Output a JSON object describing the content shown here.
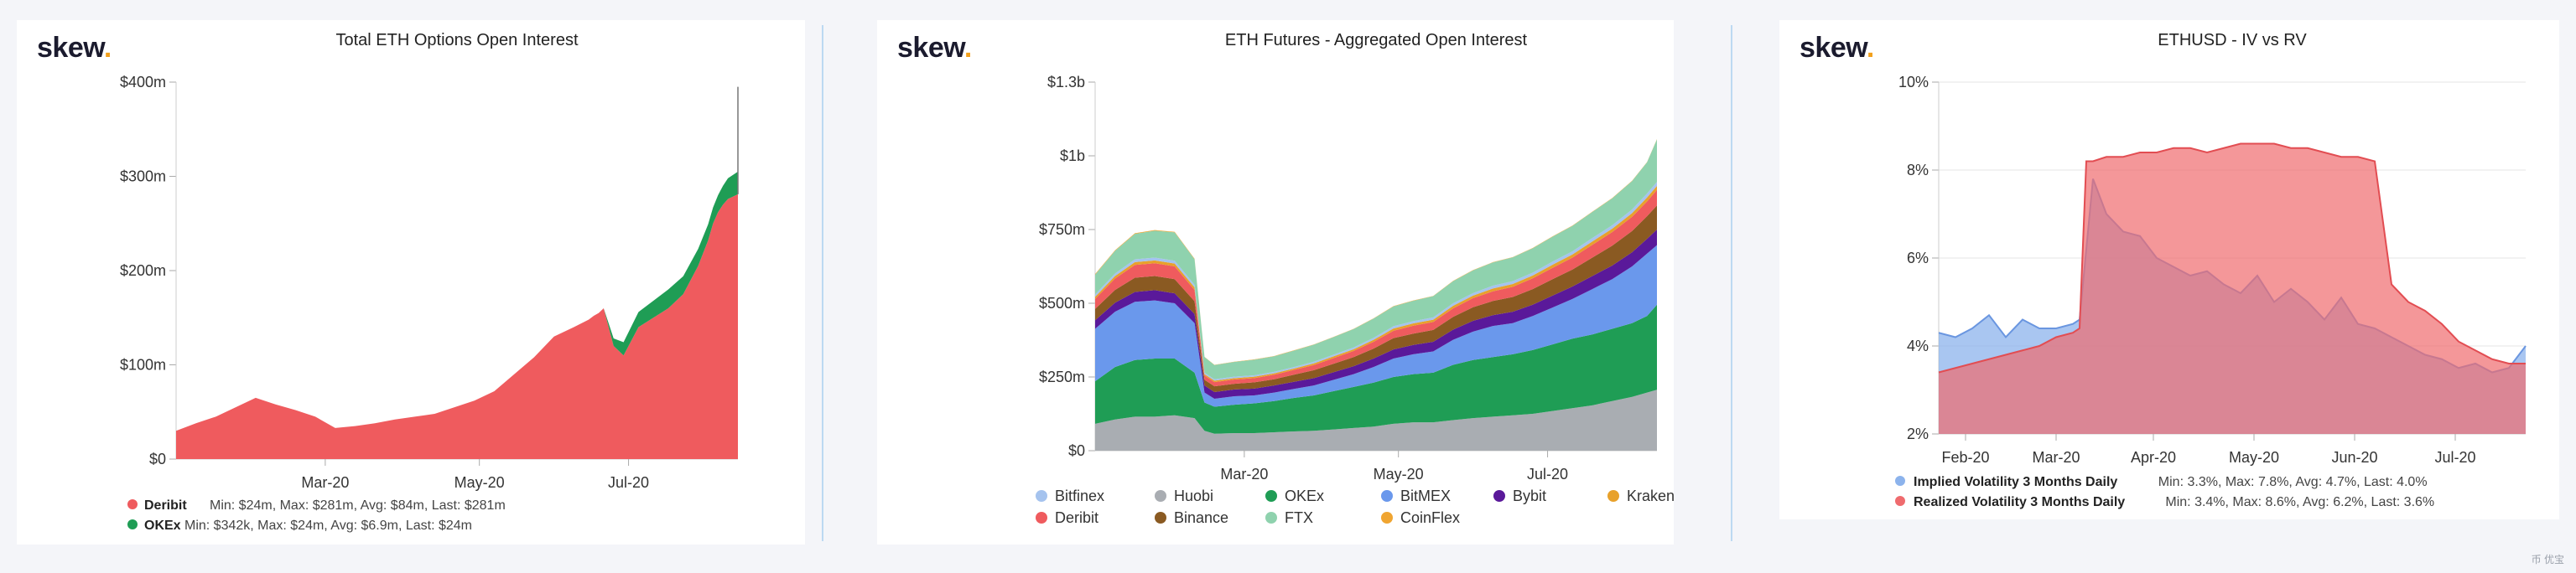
{
  "brand": {
    "name": "skew",
    "dot": "."
  },
  "footer_mark": "币 优宝",
  "colors": {
    "deribit": "#ef5b5e",
    "okex": "#1f9d55",
    "bitfinex": "#a5c3ee",
    "huobi": "#a9adb2",
    "bitmex": "#6a98ec",
    "bybit": "#5a199a",
    "kraken": "#e8a12b",
    "binance": "#8a5a22",
    "ftx": "#8fd2ae",
    "coinflex": "#f0a531",
    "implied": "#8cb3ec",
    "realized": "#ef6b6e"
  },
  "chart_data": [
    {
      "type": "area",
      "title": "Total ETH Options Open Interest",
      "xlabel": "",
      "ylabel": "",
      "ylim": [
        0,
        400
      ],
      "yticks": [
        "$0",
        "$100m",
        "$200m",
        "$300m",
        "$400m"
      ],
      "xticks": [
        {
          "label": "Mar-20",
          "x": 60
        },
        {
          "label": "May-20",
          "x": 122
        },
        {
          "label": "Jul-20",
          "x": 182
        }
      ],
      "x": [
        0,
        8,
        16,
        24,
        32,
        40,
        48,
        56,
        64,
        72,
        80,
        88,
        96,
        104,
        112,
        120,
        128,
        136,
        144,
        152,
        160,
        166,
        168,
        170,
        172,
        176,
        180,
        186,
        192,
        198,
        204,
        210,
        214,
        216,
        218,
        220,
        222,
        226
      ],
      "series": [
        {
          "name": "Deribit",
          "values": [
            30,
            38,
            45,
            55,
            65,
            58,
            52,
            45,
            33,
            35,
            38,
            42,
            45,
            48,
            55,
            62,
            72,
            90,
            108,
            130,
            140,
            148,
            152,
            155,
            160,
            120,
            110,
            140,
            150,
            160,
            175,
            205,
            232,
            250,
            262,
            270,
            276,
            281
          ]
        },
        {
          "name": "OKEx",
          "values": [
            0,
            0,
            0,
            0,
            0,
            0,
            0,
            0,
            0,
            0,
            0,
            0,
            0,
            0,
            0,
            0,
            0,
            0,
            0,
            0,
            0,
            0,
            0,
            0,
            0,
            8,
            14,
            16,
            18,
            20,
            19,
            18,
            17,
            17,
            18,
            20,
            22,
            24
          ]
        }
      ],
      "annotation_peak": 395,
      "legend": [
        {
          "name": "Deribit",
          "stats": "Min: $24m, Max: $281m, Avg: $84m, Last: $281m"
        },
        {
          "name": "OKEx",
          "stats": "Min: $342k, Max: $24m, Avg: $6.9m, Last: $24m"
        }
      ]
    },
    {
      "type": "area",
      "title": "ETH Futures - Aggregated Open Interest",
      "xlabel": "",
      "ylabel": "",
      "ylim": [
        0,
        1300
      ],
      "yticks": [
        "$0",
        "$250m",
        "$500m",
        "$750m",
        "$1b",
        "$1.3b"
      ],
      "xticks": [
        {
          "label": "Mar-20",
          "x": 60
        },
        {
          "label": "May-20",
          "x": 122
        },
        {
          "label": "Jul-20",
          "x": 182
        }
      ],
      "x": [
        0,
        8,
        16,
        24,
        32,
        40,
        44,
        48,
        56,
        64,
        72,
        80,
        88,
        96,
        104,
        112,
        120,
        128,
        136,
        144,
        152,
        160,
        168,
        176,
        184,
        192,
        200,
        208,
        216,
        222,
        226
      ],
      "series": [
        {
          "name": "Huobi",
          "values": [
            95,
            110,
            120,
            120,
            125,
            115,
            70,
            60,
            62,
            62,
            65,
            68,
            70,
            75,
            80,
            85,
            95,
            100,
            100,
            108,
            115,
            120,
            125,
            130,
            140,
            150,
            160,
            175,
            190,
            205,
            215
          ]
        },
        {
          "name": "OKEx",
          "values": [
            150,
            185,
            200,
            205,
            200,
            160,
            100,
            95,
            100,
            105,
            110,
            118,
            125,
            135,
            145,
            155,
            165,
            170,
            175,
            195,
            205,
            210,
            215,
            225,
            235,
            245,
            250,
            255,
            260,
            270,
            300
          ]
        },
        {
          "name": "BitMEX",
          "values": [
            185,
            195,
            205,
            205,
            195,
            175,
            35,
            28,
            30,
            28,
            30,
            32,
            35,
            40,
            45,
            55,
            65,
            70,
            75,
            88,
            100,
            110,
            110,
            120,
            130,
            140,
            160,
            175,
            200,
            220,
            210
          ]
        },
        {
          "name": "Bybit",
          "values": [
            30,
            32,
            35,
            36,
            35,
            32,
            25,
            24,
            24,
            24,
            25,
            25,
            26,
            27,
            28,
            30,
            32,
            33,
            34,
            36,
            38,
            38,
            40,
            40,
            42,
            44,
            46,
            48,
            50,
            52,
            55
          ]
        },
        {
          "name": "Binance",
          "values": [
            40,
            45,
            50,
            50,
            50,
            45,
            20,
            20,
            20,
            22,
            22,
            25,
            28,
            30,
            32,
            35,
            40,
            40,
            42,
            45,
            48,
            50,
            52,
            55,
            58,
            60,
            65,
            70,
            75,
            80,
            85
          ]
        },
        {
          "name": "Deribit",
          "values": [
            35,
            40,
            45,
            45,
            45,
            40,
            15,
            15,
            15,
            15,
            16,
            17,
            18,
            20,
            22,
            24,
            26,
            28,
            28,
            30,
            32,
            34,
            36,
            38,
            40,
            42,
            45,
            48,
            50,
            52,
            55
          ]
        },
        {
          "name": "Kraken",
          "values": [
            8,
            9,
            10,
            10,
            10,
            9,
            5,
            5,
            5,
            5,
            5,
            5,
            6,
            6,
            6,
            7,
            8,
            8,
            8,
            9,
            9,
            10,
            10,
            10,
            11,
            11,
            12,
            12,
            13,
            14,
            14
          ]
        },
        {
          "name": "Bitfinex",
          "values": [
            8,
            9,
            10,
            10,
            10,
            9,
            5,
            5,
            5,
            5,
            5,
            5,
            6,
            6,
            6,
            7,
            8,
            8,
            8,
            9,
            9,
            10,
            10,
            10,
            11,
            11,
            12,
            12,
            13,
            14,
            14
          ]
        },
        {
          "name": "FTX",
          "values": [
            70,
            80,
            90,
            95,
            100,
            90,
            55,
            50,
            52,
            55,
            55,
            58,
            60,
            62,
            65,
            68,
            70,
            72,
            75,
            78,
            80,
            82,
            84,
            86,
            88,
            90,
            92,
            95,
            100,
            110,
            150
          ]
        },
        {
          "name": "CoinFlex",
          "values": [
            2,
            2,
            2,
            2,
            2,
            2,
            1,
            1,
            1,
            1,
            1,
            1,
            1,
            1,
            1,
            1,
            1,
            1,
            1,
            1,
            1,
            1,
            1,
            1,
            1,
            1,
            1,
            1,
            1,
            1,
            1
          ]
        }
      ],
      "legend": [
        {
          "name": "Bitfinex"
        },
        {
          "name": "Huobi"
        },
        {
          "name": "OKEx"
        },
        {
          "name": "BitMEX"
        },
        {
          "name": "Bybit"
        },
        {
          "name": "Kraken"
        },
        {
          "name": "Deribit"
        },
        {
          "name": "Binance"
        },
        {
          "name": "FTX"
        },
        {
          "name": "CoinFlex"
        }
      ]
    },
    {
      "type": "area",
      "title": "ETHUSD - IV vs RV",
      "xlabel": "",
      "ylabel": "",
      "ylim": [
        2,
        10
      ],
      "yticks": [
        "2%",
        "4%",
        "6%",
        "8%",
        "10%"
      ],
      "xticks": [
        {
          "label": "Feb-20",
          "x": 8
        },
        {
          "label": "Mar-20",
          "x": 35
        },
        {
          "label": "Apr-20",
          "x": 64
        },
        {
          "label": "May-20",
          "x": 94
        },
        {
          "label": "Jun-20",
          "x": 124
        },
        {
          "label": "Jul-20",
          "x": 154
        }
      ],
      "x": [
        0,
        5,
        10,
        15,
        20,
        25,
        30,
        35,
        40,
        42,
        44,
        46,
        50,
        55,
        60,
        65,
        70,
        75,
        80,
        85,
        90,
        95,
        100,
        105,
        110,
        115,
        120,
        125,
        130,
        135,
        140,
        145,
        150,
        155,
        160,
        165,
        170,
        175
      ],
      "series": [
        {
          "name": "Implied Volatility 3 Months Daily",
          "values": [
            4.3,
            4.2,
            4.4,
            4.7,
            4.2,
            4.6,
            4.4,
            4.4,
            4.5,
            4.6,
            6.2,
            7.8,
            7.0,
            6.6,
            6.5,
            6.0,
            5.8,
            5.6,
            5.7,
            5.4,
            5.2,
            5.6,
            5.0,
            5.3,
            5.0,
            4.6,
            5.1,
            4.5,
            4.4,
            4.2,
            4.0,
            3.8,
            3.7,
            3.5,
            3.6,
            3.4,
            3.5,
            4.0
          ]
        },
        {
          "name": "Realized Volatility 3 Months Daily",
          "values": [
            3.4,
            3.5,
            3.6,
            3.7,
            3.8,
            3.9,
            4.0,
            4.2,
            4.3,
            4.4,
            8.2,
            8.2,
            8.3,
            8.3,
            8.4,
            8.4,
            8.5,
            8.5,
            8.4,
            8.5,
            8.6,
            8.6,
            8.6,
            8.5,
            8.5,
            8.4,
            8.3,
            8.3,
            8.2,
            5.4,
            5.0,
            4.8,
            4.5,
            4.1,
            3.9,
            3.7,
            3.6,
            3.6
          ]
        }
      ],
      "legend": [
        {
          "name": "Implied Volatility 3 Months Daily",
          "stats": "Min: 3.3%, Max: 7.8%, Avg: 4.7%, Last: 4.0%"
        },
        {
          "name": "Realized Volatility 3 Months Daily",
          "stats": "Min: 3.4%, Max: 8.6%, Avg: 6.2%, Last: 3.6%"
        }
      ]
    }
  ]
}
